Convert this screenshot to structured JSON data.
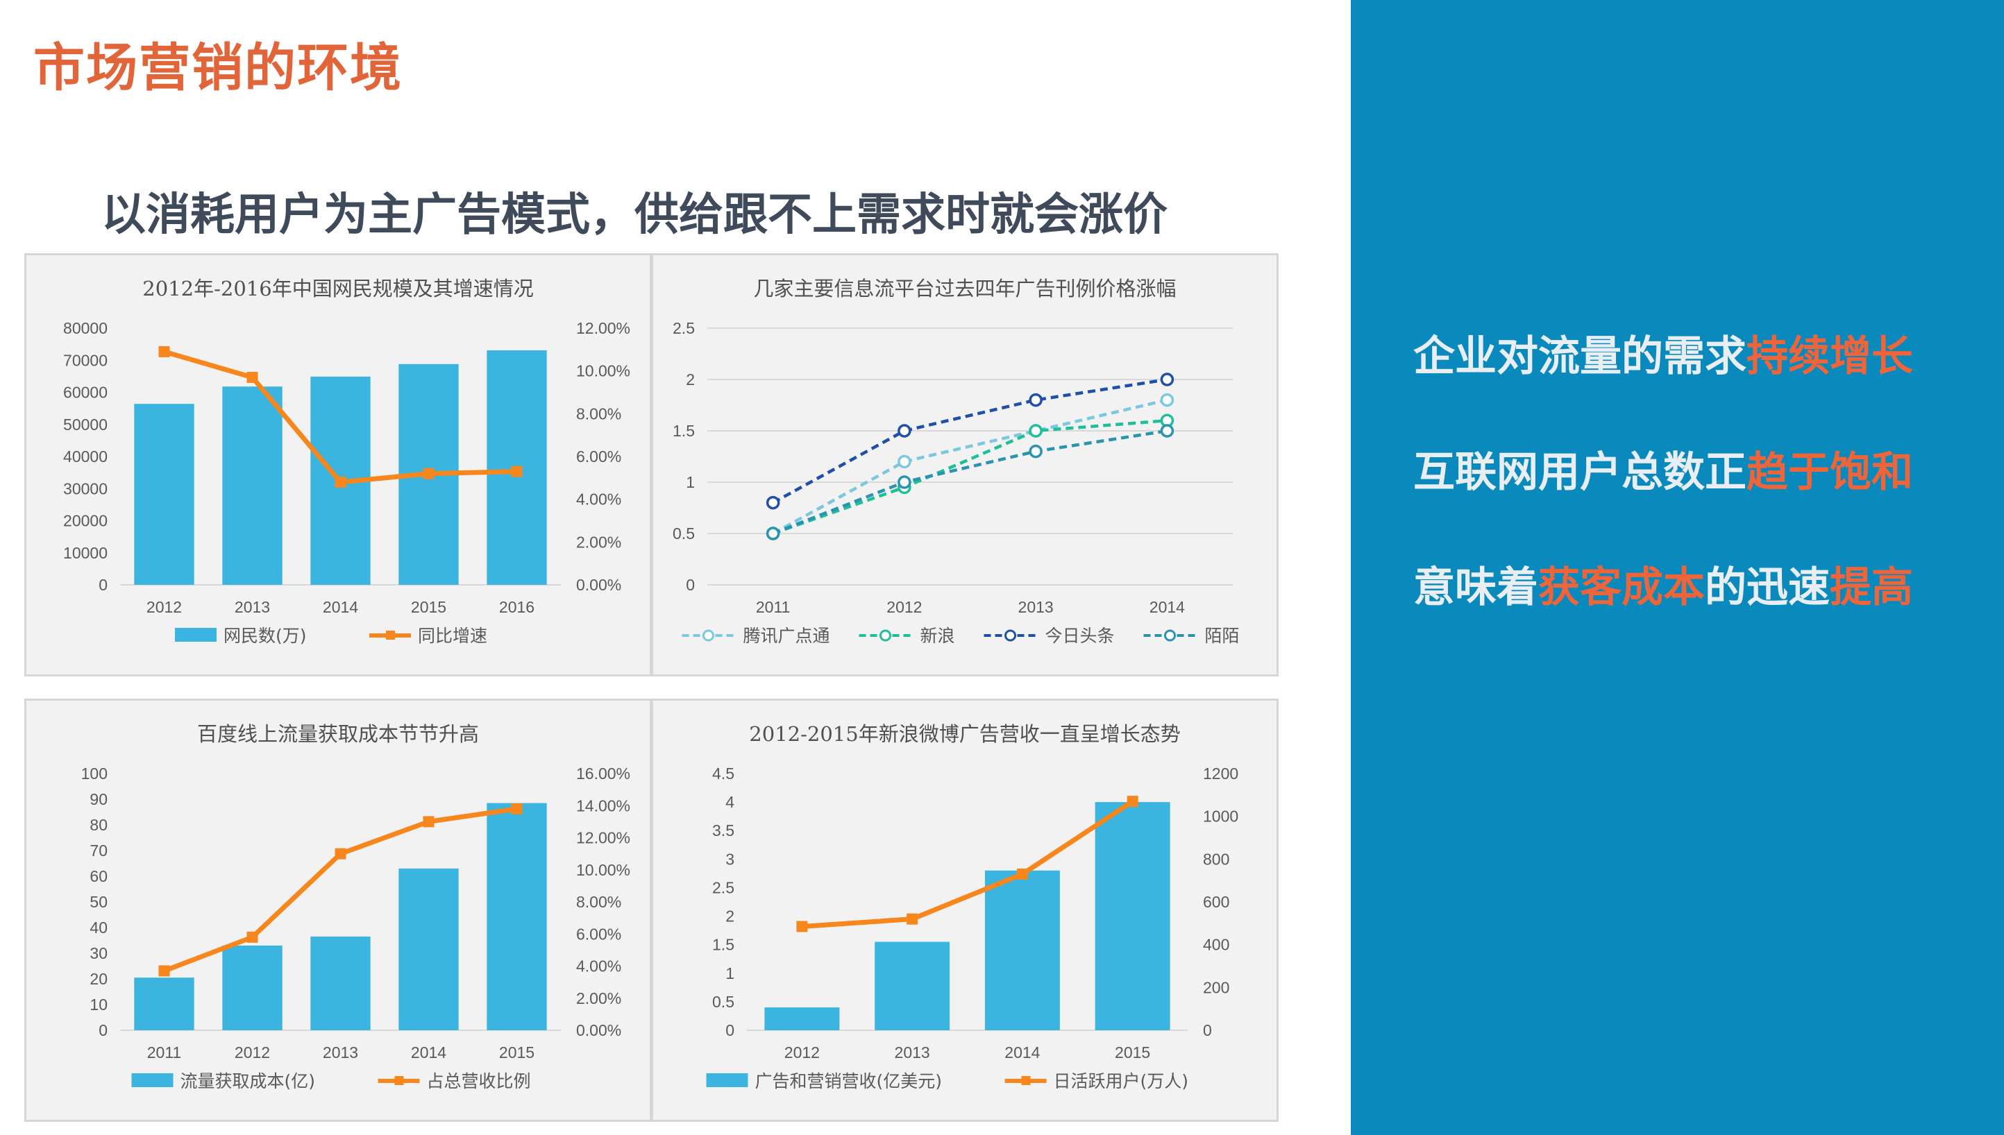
{
  "page": {
    "title": "市场营销的环境",
    "subtitle": "以消耗用户为主广告模式，供给跟不上需求时就会涨价"
  },
  "side": {
    "points": [
      {
        "pre": "企业对流量的需求",
        "hl": "持续增长",
        "post": ""
      },
      {
        "pre": "互联网用户总数正",
        "hl": "趋于饱和",
        "post": ""
      },
      {
        "pre": "意味着",
        "hl": "获客成本",
        "post": "的迅速",
        "hl2": "提高"
      }
    ]
  },
  "colors": {
    "accent": "#e2653a",
    "panel": "#0a89bd",
    "bar": "#3cb4e0",
    "line": "#f7861c"
  },
  "chart_data": [
    {
      "type": "bar",
      "title": "2012年-2016年中国网民规模及其增速情况",
      "categories": [
        "2012",
        "2013",
        "2014",
        "2015",
        "2016"
      ],
      "series": [
        {
          "name": "网民数(万)",
          "type": "bar",
          "axis": "left",
          "values": [
            56400,
            61800,
            64900,
            68800,
            73100
          ]
        },
        {
          "name": "同比增速",
          "type": "line",
          "axis": "right",
          "values": [
            10.9,
            9.7,
            4.8,
            5.2,
            5.3
          ]
        }
      ],
      "ylim": [
        0,
        80000
      ],
      "yticks": [
        "0",
        "10000",
        "20000",
        "30000",
        "40000",
        "50000",
        "60000",
        "70000",
        "80000"
      ],
      "y2lim": [
        0,
        12
      ],
      "y2ticks": [
        "0.00%",
        "2.00%",
        "4.00%",
        "6.00%",
        "8.00%",
        "10.00%",
        "12.00%"
      ],
      "grid": false,
      "legend": "bottom"
    },
    {
      "type": "line",
      "title": "几家主要信息流平台过去四年广告刊例价格涨幅",
      "categories": [
        "2011",
        "2012",
        "2013",
        "2014"
      ],
      "series": [
        {
          "name": "腾讯广点通",
          "color": "#7cc8de",
          "values": [
            0.5,
            1.2,
            1.5,
            1.8
          ]
        },
        {
          "name": "新浪",
          "color": "#1fbf9a",
          "values": [
            0.5,
            0.95,
            1.5,
            1.6
          ]
        },
        {
          "name": "今日头条",
          "color": "#1f4fa8",
          "values": [
            0.8,
            1.5,
            1.8,
            2.0
          ]
        },
        {
          "name": "陌陌",
          "color": "#2a93b0",
          "values": [
            0.5,
            1.0,
            1.3,
            1.5
          ]
        }
      ],
      "ylim": [
        0,
        2.5
      ],
      "yticks": [
        "0",
        "0.5",
        "1",
        "1.5",
        "2",
        "2.5"
      ],
      "grid": true,
      "legend": "bottom"
    },
    {
      "type": "bar",
      "title": "百度线上流量获取成本节节升高",
      "categories": [
        "2011",
        "2012",
        "2013",
        "2014",
        "2015"
      ],
      "series": [
        {
          "name": "流量获取成本(亿)",
          "type": "bar",
          "axis": "left",
          "values": [
            20.5,
            33,
            36.5,
            63,
            88.5
          ]
        },
        {
          "name": "占总营收比例",
          "type": "line",
          "axis": "right",
          "values": [
            3.7,
            5.8,
            11.0,
            13.0,
            13.8
          ]
        }
      ],
      "ylim": [
        0,
        100
      ],
      "yticks": [
        "0",
        "10",
        "20",
        "30",
        "40",
        "50",
        "60",
        "70",
        "80",
        "90",
        "100"
      ],
      "y2lim": [
        0,
        16
      ],
      "y2ticks": [
        "0.00%",
        "2.00%",
        "4.00%",
        "6.00%",
        "8.00%",
        "10.00%",
        "12.00%",
        "14.00%",
        "16.00%"
      ],
      "grid": false,
      "legend": "bottom"
    },
    {
      "type": "bar",
      "title": "2012-2015年新浪微博广告营收一直呈增长态势",
      "categories": [
        "2012",
        "2013",
        "2014",
        "2015"
      ],
      "series": [
        {
          "name": "广告和营销营收(亿美元)",
          "type": "bar",
          "axis": "left",
          "values": [
            0.4,
            1.55,
            2.8,
            4.0
          ]
        },
        {
          "name": "日活跃用户(万人)",
          "type": "line",
          "axis": "right",
          "values": [
            485,
            520,
            730,
            1070
          ]
        }
      ],
      "ylim": [
        0,
        4.5
      ],
      "yticks": [
        "0",
        "0.5",
        "1",
        "1.5",
        "2",
        "2.5",
        "3",
        "3.5",
        "4",
        "4.5"
      ],
      "y2lim": [
        0,
        1200
      ],
      "y2ticks": [
        "0",
        "200",
        "400",
        "600",
        "800",
        "1000",
        "1200"
      ],
      "grid": false,
      "legend": "bottom"
    }
  ]
}
